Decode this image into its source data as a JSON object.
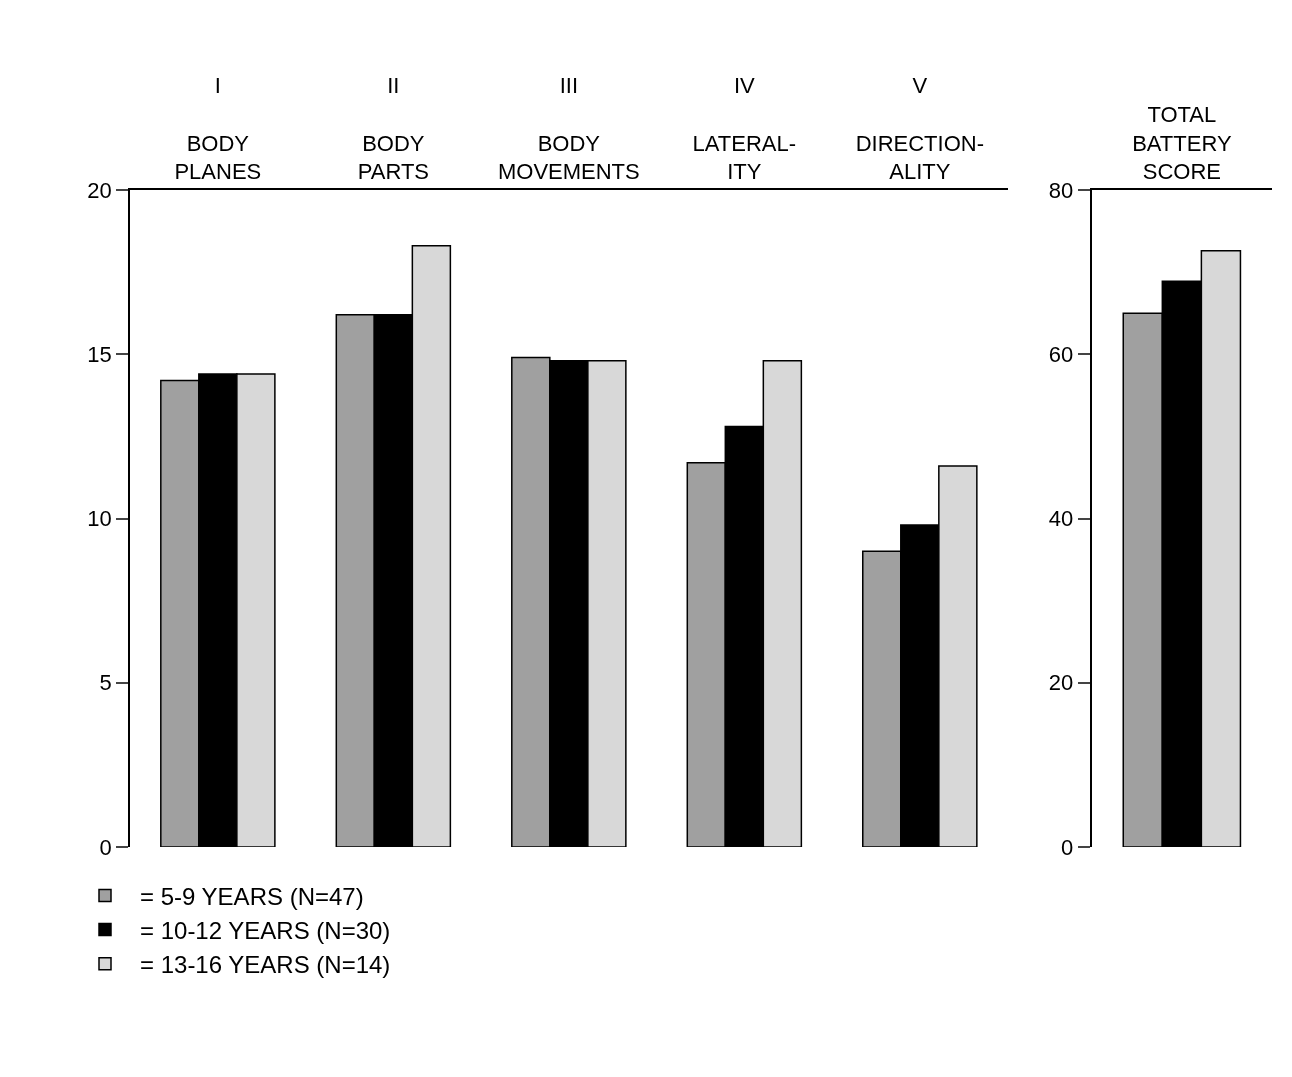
{
  "chart_data": [
    {
      "type": "bar",
      "categories": [
        "I\n\nBODY\nPLANES",
        "II\n\nBODY\nPARTS",
        "III\n\nBODY\nMOVEMENTS",
        "IV\n\nLATERAL-\nITY",
        "V\n\nDIRECTION-\nALITY"
      ],
      "series": [
        {
          "name": "= 5-9 YEARS (N=47)",
          "color": "#a0a0a0",
          "values": [
            14.2,
            16.2,
            14.9,
            11.7,
            9.0
          ]
        },
        {
          "name": "= 10-12 YEARS (N=30)",
          "color": "#000000",
          "values": [
            14.4,
            16.2,
            14.8,
            12.8,
            9.8
          ]
        },
        {
          "name": "= 13-16 YEARS (N=14)",
          "color": "#d8d8d8",
          "values": [
            14.4,
            18.3,
            14.8,
            14.8,
            11.6
          ]
        }
      ],
      "ylim": [
        0,
        20
      ],
      "yticks": [
        0,
        5,
        10,
        15,
        20
      ],
      "legend": "bottom left"
    },
    {
      "type": "bar",
      "categories": [
        "TOTAL\nBATTERY\nSCORE"
      ],
      "series": [
        {
          "color": "#a0a0a0",
          "values": [
            65.0
          ]
        },
        {
          "color": "#000000",
          "values": [
            68.9
          ]
        },
        {
          "color": "#d8d8d8",
          "values": [
            72.6
          ]
        }
      ],
      "ylim": [
        0,
        80
      ],
      "yticks": [
        0,
        20,
        40,
        60,
        80
      ]
    }
  ]
}
